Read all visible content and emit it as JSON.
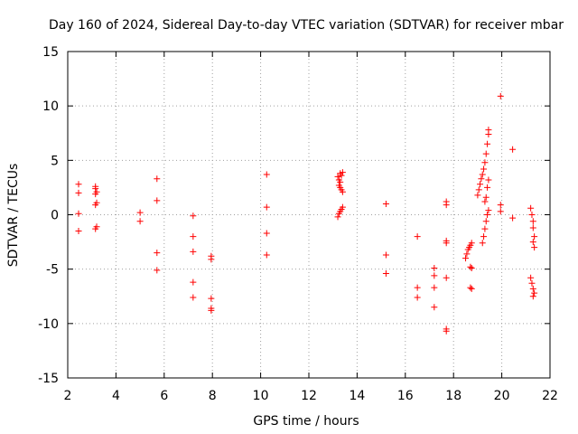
{
  "chart_data": {
    "type": "scatter",
    "title": "Day 160 of 2024, Sidereal Day-to-day VTEC variation (SDTVAR) for receiver mbar",
    "xlabel": "GPS time / hours",
    "ylabel": "SDTVAR / TECUs",
    "xlim": [
      2,
      22
    ],
    "ylim": [
      -15,
      15
    ],
    "x_ticks": [
      2,
      4,
      6,
      8,
      10,
      12,
      14,
      16,
      18,
      20,
      22
    ],
    "x_tick_labels": [
      "2",
      "4",
      "6",
      "8",
      "10",
      "12",
      "14",
      "16",
      "18",
      "20",
      "22"
    ],
    "y_ticks": [
      -15,
      -10,
      -5,
      0,
      5,
      10,
      15
    ],
    "y_tick_labels": [
      "-15",
      "-10",
      "-5",
      "0",
      "5",
      "10",
      "15"
    ],
    "grid": true,
    "marker": "+",
    "marker_color": "#ff0000",
    "series": [
      {
        "name": "SDTVAR",
        "points": [
          [
            2.45,
            2.8
          ],
          [
            2.45,
            2.0
          ],
          [
            2.45,
            0.1
          ],
          [
            2.45,
            -1.5
          ],
          [
            3.15,
            2.6
          ],
          [
            3.15,
            2.4
          ],
          [
            3.2,
            2.1
          ],
          [
            3.15,
            1.9
          ],
          [
            3.2,
            1.1
          ],
          [
            3.15,
            0.9
          ],
          [
            3.2,
            -1.1
          ],
          [
            3.15,
            -1.3
          ],
          [
            5.0,
            0.2
          ],
          [
            5.0,
            -0.6
          ],
          [
            5.7,
            3.3
          ],
          [
            5.7,
            1.3
          ],
          [
            5.7,
            -3.5
          ],
          [
            5.7,
            -5.1
          ],
          [
            7.2,
            -0.1
          ],
          [
            7.2,
            -2.0
          ],
          [
            7.2,
            -3.4
          ],
          [
            7.2,
            -6.2
          ],
          [
            7.2,
            -7.6
          ],
          [
            7.95,
            -3.8
          ],
          [
            7.95,
            -4.1
          ],
          [
            7.95,
            -7.7
          ],
          [
            7.95,
            -8.6
          ],
          [
            7.95,
            -8.8
          ],
          [
            10.25,
            3.7
          ],
          [
            10.25,
            0.7
          ],
          [
            10.25,
            -1.7
          ],
          [
            10.25,
            -3.7
          ],
          [
            13.2,
            3.5
          ],
          [
            13.25,
            3.2
          ],
          [
            13.3,
            3.0
          ],
          [
            13.25,
            2.7
          ],
          [
            13.3,
            2.5
          ],
          [
            13.35,
            2.3
          ],
          [
            13.4,
            2.1
          ],
          [
            13.3,
            3.8
          ],
          [
            13.35,
            3.6
          ],
          [
            13.4,
            3.9
          ],
          [
            13.2,
            -0.2
          ],
          [
            13.25,
            0.1
          ],
          [
            13.3,
            0.3
          ],
          [
            13.35,
            0.5
          ],
          [
            13.4,
            0.7
          ],
          [
            15.2,
            1.0
          ],
          [
            15.2,
            -3.7
          ],
          [
            15.2,
            -5.4
          ],
          [
            16.5,
            -2.0
          ],
          [
            16.5,
            -6.7
          ],
          [
            16.5,
            -7.6
          ],
          [
            17.2,
            -4.9
          ],
          [
            17.2,
            -5.6
          ],
          [
            17.2,
            -6.7
          ],
          [
            17.2,
            -8.5
          ],
          [
            17.7,
            1.2
          ],
          [
            17.7,
            0.9
          ],
          [
            17.7,
            -2.4
          ],
          [
            17.7,
            -2.6
          ],
          [
            17.7,
            -5.8
          ],
          [
            17.7,
            -10.5
          ],
          [
            17.7,
            -10.7
          ],
          [
            18.5,
            -4.0
          ],
          [
            18.55,
            -3.6
          ],
          [
            18.6,
            -3.2
          ],
          [
            18.65,
            -3.0
          ],
          [
            18.7,
            -2.8
          ],
          [
            18.75,
            -2.6
          ],
          [
            18.7,
            -4.8
          ],
          [
            18.75,
            -4.9
          ],
          [
            18.7,
            -6.7
          ],
          [
            18.75,
            -6.8
          ],
          [
            19.0,
            1.8
          ],
          [
            19.05,
            2.3
          ],
          [
            19.1,
            2.8
          ],
          [
            19.15,
            3.3
          ],
          [
            19.2,
            3.7
          ],
          [
            19.25,
            4.2
          ],
          [
            19.3,
            4.8
          ],
          [
            19.35,
            5.6
          ],
          [
            19.4,
            6.5
          ],
          [
            19.45,
            7.4
          ],
          [
            19.45,
            7.8
          ],
          [
            19.2,
            -2.6
          ],
          [
            19.25,
            -2.0
          ],
          [
            19.3,
            -1.3
          ],
          [
            19.35,
            -0.6
          ],
          [
            19.4,
            0.0
          ],
          [
            19.45,
            0.4
          ],
          [
            19.3,
            1.2
          ],
          [
            19.35,
            1.6
          ],
          [
            19.4,
            2.5
          ],
          [
            19.45,
            3.2
          ],
          [
            19.95,
            10.9
          ],
          [
            19.95,
            0.9
          ],
          [
            19.95,
            0.3
          ],
          [
            20.45,
            6.0
          ],
          [
            20.45,
            -0.3
          ],
          [
            21.2,
            0.6
          ],
          [
            21.25,
            0.0
          ],
          [
            21.3,
            -0.6
          ],
          [
            21.3,
            -1.2
          ],
          [
            21.35,
            -2.0
          ],
          [
            21.3,
            -2.5
          ],
          [
            21.35,
            -3.0
          ],
          [
            21.2,
            -5.8
          ],
          [
            21.25,
            -6.3
          ],
          [
            21.3,
            -6.8
          ],
          [
            21.35,
            -7.2
          ],
          [
            21.3,
            -7.5
          ]
        ]
      }
    ]
  }
}
